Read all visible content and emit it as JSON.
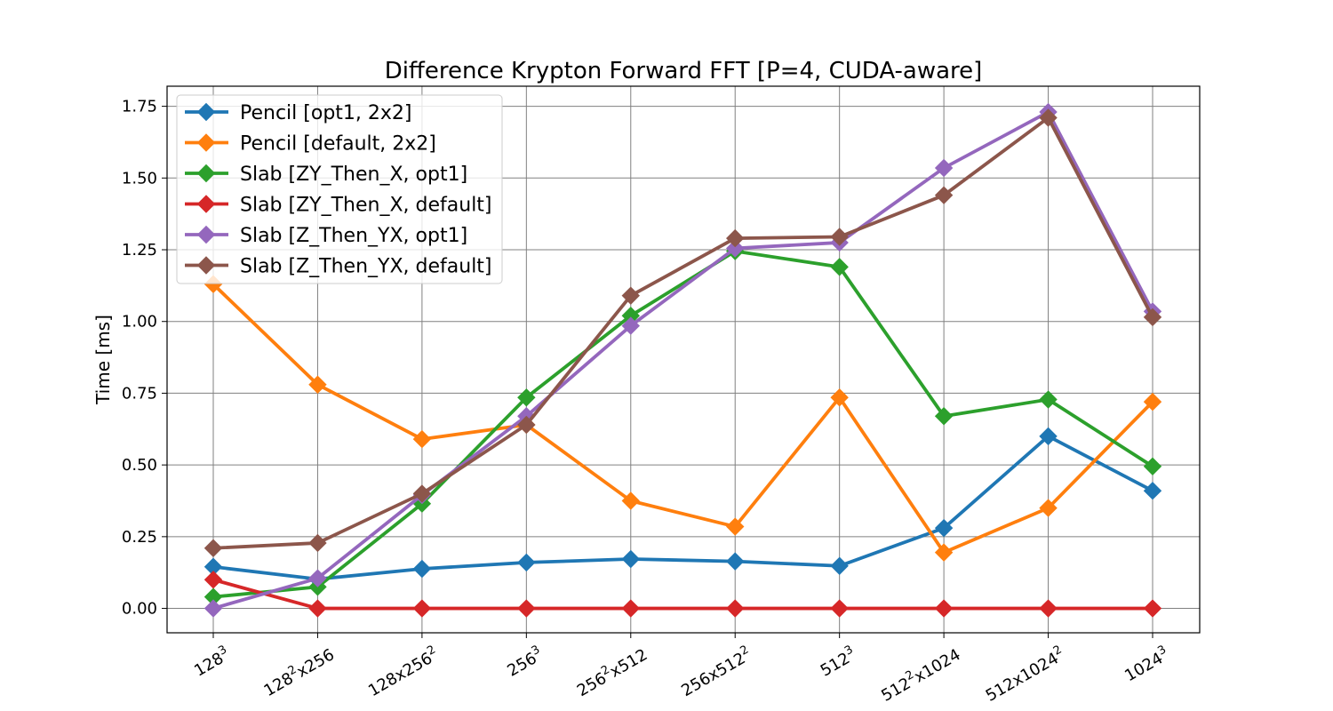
{
  "chart_data": {
    "type": "line",
    "title": "Difference Krypton Forward FFT [P=4, CUDA-aware]",
    "xlabel": "",
    "ylabel": "Time [ms]",
    "categories": [
      {
        "base": "128",
        "sup": "3",
        "rest": "",
        "sup2": ""
      },
      {
        "base": "128",
        "sup": "2",
        "rest": "x256",
        "sup2": ""
      },
      {
        "base": "128x256",
        "sup": "2",
        "rest": "",
        "sup2": ""
      },
      {
        "base": "256",
        "sup": "3",
        "rest": "",
        "sup2": ""
      },
      {
        "base": "256",
        "sup": "2",
        "rest": "x512",
        "sup2": ""
      },
      {
        "base": "256x512",
        "sup": "2",
        "rest": "",
        "sup2": ""
      },
      {
        "base": "512",
        "sup": "3",
        "rest": "",
        "sup2": ""
      },
      {
        "base": "512",
        "sup": "2",
        "rest": "x1024",
        "sup2": ""
      },
      {
        "base": "512x1024",
        "sup": "2",
        "rest": "",
        "sup2": ""
      },
      {
        "base": "1024",
        "sup": "3",
        "rest": "",
        "sup2": ""
      }
    ],
    "ylim": [
      -0.085,
      1.82
    ],
    "yticks": [
      0.0,
      0.25,
      0.5,
      0.75,
      1.0,
      1.25,
      1.5,
      1.75
    ],
    "ytick_labels": [
      "0.00",
      "0.25",
      "0.50",
      "0.75",
      "1.00",
      "1.25",
      "1.50",
      "1.75"
    ],
    "grid": true,
    "legend_position": "top-left",
    "series": [
      {
        "name": "Pencil [opt1, 2x2]",
        "color": "#1f77b4",
        "values": [
          0.145,
          0.102,
          0.138,
          0.16,
          0.172,
          0.164,
          0.148,
          0.28,
          0.6,
          0.41
        ]
      },
      {
        "name": "Pencil [default, 2x2]",
        "color": "#ff7f0e",
        "values": [
          1.13,
          0.78,
          0.59,
          0.64,
          0.375,
          0.285,
          0.735,
          0.195,
          0.35,
          0.72
        ]
      },
      {
        "name": "Slab [ZY_Then_X, opt1]",
        "color": "#2ca02c",
        "values": [
          0.04,
          0.075,
          0.365,
          0.735,
          1.02,
          1.245,
          1.19,
          0.67,
          0.728,
          0.495
        ]
      },
      {
        "name": "Slab [ZY_Then_X, default]",
        "color": "#d62728",
        "values": [
          0.1,
          0.0,
          0.0,
          0.0,
          0.0,
          0.0,
          0.0,
          0.0,
          0.0,
          0.0
        ]
      },
      {
        "name": "Slab [Z_Then_YX, opt1]",
        "color": "#9467bd",
        "values": [
          0.0,
          0.105,
          0.395,
          0.67,
          0.985,
          1.255,
          1.275,
          1.535,
          1.73,
          1.035
        ]
      },
      {
        "name": "Slab [Z_Then_YX, default]",
        "color": "#8c564b",
        "values": [
          0.21,
          0.228,
          0.4,
          0.64,
          1.09,
          1.29,
          1.295,
          1.44,
          1.71,
          1.015
        ]
      }
    ]
  }
}
